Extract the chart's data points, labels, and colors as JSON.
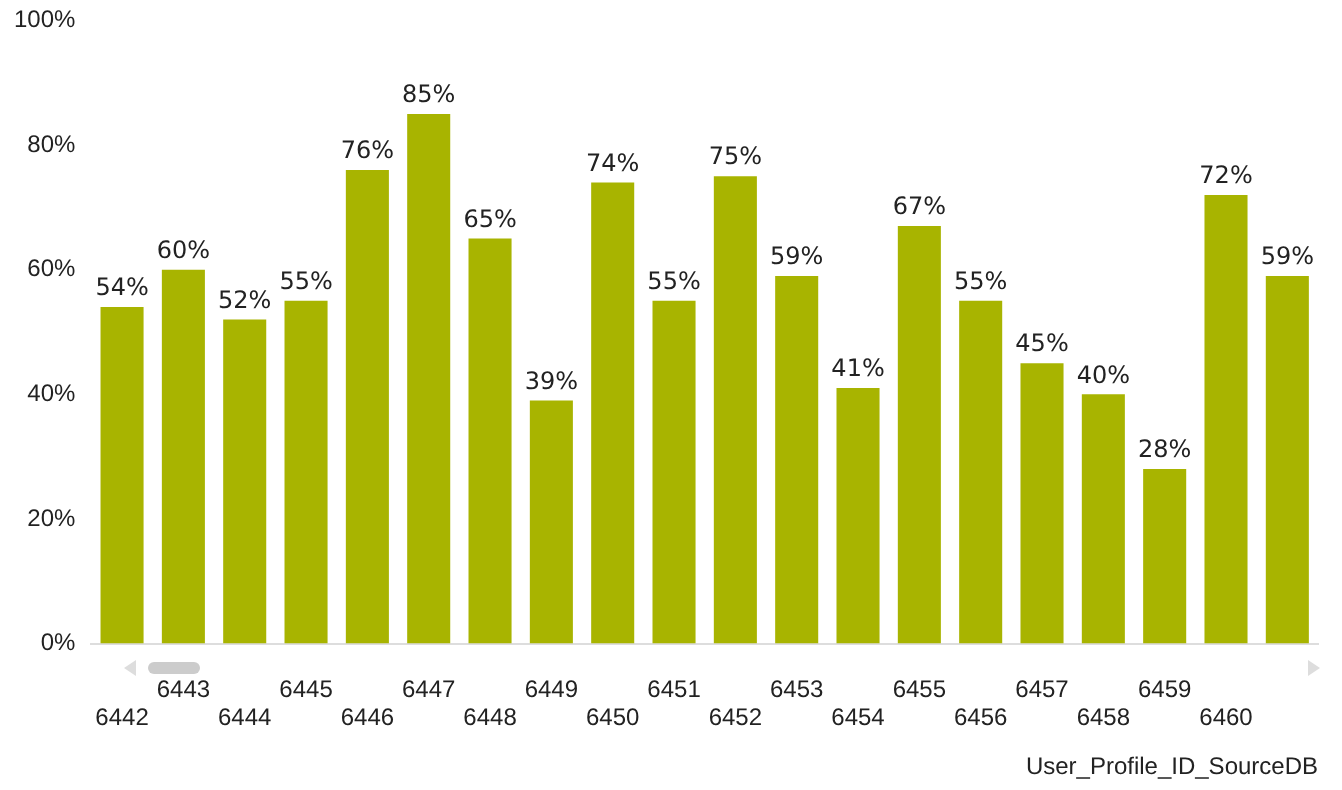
{
  "chart_data": {
    "type": "bar",
    "xlabel": "User_Profile_ID_SourceDB",
    "categories": [
      "6442",
      "6443",
      "6444",
      "6445",
      "6446",
      "6447",
      "6448",
      "6449",
      "6450",
      "6451",
      "6452",
      "6453",
      "6454",
      "6455",
      "6456",
      "6457",
      "6458",
      "6459",
      "6460",
      null
    ],
    "values": [
      54,
      60,
      52,
      55,
      76,
      85,
      65,
      39,
      74,
      55,
      75,
      59,
      41,
      67,
      55,
      45,
      40,
      28,
      72,
      59
    ],
    "value_labels": [
      "54%",
      "60%",
      "52%",
      "55%",
      "76%",
      "85%",
      "65%",
      "39%",
      "74%",
      "55%",
      "75%",
      "59%",
      "41%",
      "67%",
      "55%",
      "45%",
      "40%",
      "28%",
      "72%",
      "59%"
    ],
    "color": "#a8b400",
    "ylim": [
      0,
      100
    ],
    "yticks": [
      {
        "value": 0,
        "label": "0%"
      },
      {
        "value": 20,
        "label": "20%"
      },
      {
        "value": 40,
        "label": "40%"
      },
      {
        "value": 60,
        "label": "60%"
      },
      {
        "value": 80,
        "label": "80%"
      },
      {
        "value": 100,
        "label": "100%"
      }
    ],
    "grid": false,
    "legend": false
  }
}
